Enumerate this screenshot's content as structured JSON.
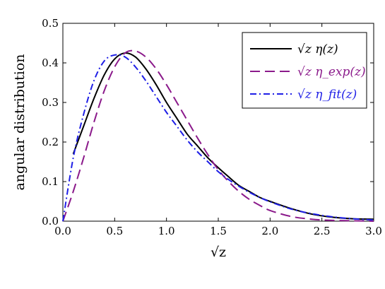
{
  "chart_data": {
    "type": "line",
    "xlabel": "√z",
    "ylabel": "angular distribution",
    "xlim": [
      0.0,
      3.0
    ],
    "ylim": [
      0.0,
      0.5
    ],
    "x_ticks": [
      "0.0",
      "0.5",
      "1.0",
      "1.5",
      "2.0",
      "2.5",
      "3.0"
    ],
    "y_ticks": [
      "0.0",
      "0.1",
      "0.2",
      "0.3",
      "0.4",
      "0.5"
    ],
    "legend_position": "top-right",
    "grid": false,
    "series": [
      {
        "name": "√z η(z)",
        "color": "#000000",
        "dash": "solid",
        "x": [
          0.1,
          0.2,
          0.3,
          0.4,
          0.5,
          0.6,
          0.7,
          0.8,
          0.9,
          1.0,
          1.1,
          1.2,
          1.3,
          1.4,
          1.5,
          1.6,
          1.7,
          1.8,
          1.9,
          2.0,
          2.2,
          2.4,
          2.6,
          2.8,
          3.0
        ],
        "y": [
          0.17,
          0.24,
          0.31,
          0.37,
          0.41,
          0.425,
          0.415,
          0.385,
          0.345,
          0.3,
          0.26,
          0.22,
          0.19,
          0.16,
          0.135,
          0.112,
          0.09,
          0.075,
          0.06,
          0.05,
          0.032,
          0.018,
          0.01,
          0.006,
          0.005
        ]
      },
      {
        "name": "√z η_exp(z)",
        "color": "#8b1a8b",
        "dash": "long-dash",
        "x": [
          0.0,
          0.1,
          0.2,
          0.3,
          0.4,
          0.5,
          0.6,
          0.7,
          0.8,
          0.9,
          1.0,
          1.1,
          1.2,
          1.3,
          1.4,
          1.5,
          1.6,
          1.7,
          1.8,
          1.9,
          2.0,
          2.2,
          2.4,
          2.6,
          2.8,
          3.0
        ],
        "y": [
          0.0,
          0.075,
          0.16,
          0.25,
          0.33,
          0.39,
          0.425,
          0.43,
          0.415,
          0.385,
          0.345,
          0.3,
          0.255,
          0.21,
          0.168,
          0.13,
          0.1,
          0.075,
          0.055,
          0.04,
          0.027,
          0.012,
          0.005,
          0.002,
          0.001,
          0.0
        ]
      },
      {
        "name": "√z η_fit(z)",
        "color": "#1f1fe6",
        "dash": "dash-dot",
        "x": [
          0.0,
          0.1,
          0.2,
          0.3,
          0.4,
          0.5,
          0.6,
          0.7,
          0.8,
          0.9,
          1.0,
          1.1,
          1.2,
          1.3,
          1.4,
          1.5,
          1.6,
          1.7,
          1.8,
          1.9,
          2.0,
          2.2,
          2.4,
          2.6,
          2.8,
          3.0
        ],
        "y": [
          0.0,
          0.16,
          0.27,
          0.355,
          0.405,
          0.42,
          0.415,
          0.39,
          0.355,
          0.315,
          0.275,
          0.24,
          0.205,
          0.175,
          0.15,
          0.125,
          0.105,
          0.088,
          0.073,
          0.06,
          0.049,
          0.031,
          0.019,
          0.011,
          0.006,
          0.003
        ]
      }
    ]
  }
}
